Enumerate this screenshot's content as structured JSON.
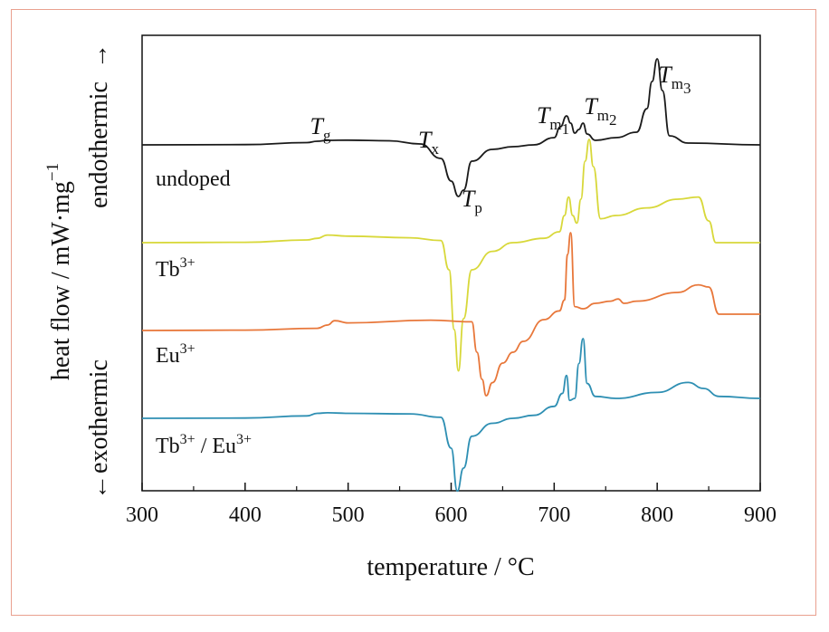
{
  "chart_data": {
    "type": "line",
    "xlabel": "temperature / °C",
    "ylabel": "heat flow / mW·mg",
    "ylabel_exponent": "−1",
    "side_labels": {
      "top": "endothermic",
      "bottom": "exothermic",
      "arrow_up": "→",
      "arrow_down": "←"
    },
    "xlim": [
      300,
      900
    ],
    "xticks": [
      300,
      400,
      500,
      600,
      700,
      800,
      900
    ],
    "colors": {
      "undoped": "#1a1a1a",
      "tb": "#d8d83a",
      "eu": "#e8773a",
      "tbeu": "#2e8fb3"
    },
    "series": [
      {
        "name": "undoped",
        "label_base": "undoped",
        "label_sup": "",
        "color": "#1a1a1a",
        "x": [
          300,
          400,
          460,
          470,
          480,
          500,
          540,
          570,
          590,
          600,
          607,
          612,
          620,
          640,
          660,
          680,
          700,
          706,
          712,
          716,
          720,
          724,
          728,
          732,
          740,
          760,
          780,
          790,
          795,
          800,
          805,
          812,
          830,
          900
        ],
        "y": [
          0,
          0.3,
          2.5,
          4,
          5,
          5.2,
          4.5,
          1,
          -15,
          -40,
          -57,
          -50,
          -18,
          -5,
          -2,
          0,
          8,
          20,
          32,
          24,
          13,
          17,
          24,
          12,
          5,
          8,
          14,
          40,
          70,
          95,
          60,
          10,
          2,
          0
        ]
      },
      {
        "name": "Tb3+",
        "label_base": "Tb",
        "label_sup": "3+",
        "color": "#d8d83a",
        "x": [
          300,
          400,
          460,
          470,
          480,
          500,
          560,
          590,
          598,
          603,
          607,
          612,
          620,
          640,
          660,
          690,
          705,
          710,
          714,
          718,
          722,
          726,
          730,
          734,
          738,
          745,
          760,
          790,
          820,
          840,
          850,
          857,
          870,
          900
        ],
        "y": [
          0,
          0.3,
          2.5,
          4,
          7,
          6,
          4.5,
          2,
          -25,
          -80,
          -118,
          -70,
          -25,
          -8,
          0,
          4,
          10,
          25,
          42,
          25,
          18,
          40,
          75,
          95,
          70,
          22,
          25,
          32,
          40,
          42,
          20,
          0,
          0,
          0
        ]
      },
      {
        "name": "Eu3+",
        "label_base": "Eu",
        "label_sup": "3+",
        "color": "#e8773a",
        "x": [
          300,
          400,
          470,
          480,
          487,
          500,
          580,
          620,
          625,
          630,
          634,
          640,
          650,
          660,
          670,
          690,
          705,
          710,
          713,
          716,
          720,
          728,
          740,
          755,
          762,
          768,
          780,
          820,
          840,
          850,
          860,
          900
        ],
        "y": [
          0,
          0.3,
          2,
          5,
          9,
          7,
          9.5,
          8,
          -20,
          -45,
          -60,
          -48,
          -30,
          -20,
          -10,
          10,
          18,
          28,
          70,
          90,
          22,
          20,
          25,
          27,
          29,
          25,
          27,
          35,
          42,
          40,
          15,
          15
        ]
      },
      {
        "name": "Tb3+ / Eu3+",
        "label_base": "Tb",
        "label_sup": "3+",
        "label_mid": " / Eu",
        "label_sup2": "3+",
        "color": "#2e8fb3",
        "x": [
          300,
          400,
          460,
          470,
          480,
          500,
          560,
          590,
          600,
          606,
          612,
          620,
          640,
          660,
          680,
          700,
          708,
          712,
          715,
          720,
          724,
          728,
          732,
          740,
          760,
          800,
          830,
          845,
          860,
          900
        ],
        "y": [
          0,
          0.3,
          2.5,
          5,
          5.5,
          5,
          4.5,
          1,
          -30,
          -73,
          -50,
          -18,
          -5,
          0,
          3,
          12,
          25,
          43,
          18,
          20,
          55,
          80,
          35,
          22,
          20,
          26,
          36,
          30,
          22,
          20
        ]
      }
    ],
    "annotations": [
      {
        "base": "T",
        "sub": "g",
        "sub2": "",
        "x": 470
      },
      {
        "base": "T",
        "sub": "x",
        "sub2": "",
        "x": 575
      },
      {
        "base": "T",
        "sub": "p",
        "sub2": "",
        "x": 617
      },
      {
        "base": "T",
        "sub": "m",
        "sub2": "1",
        "x": 690
      },
      {
        "base": "T",
        "sub": "m",
        "sub2": "2",
        "x": 736
      },
      {
        "base": "T",
        "sub": "m",
        "sub2": "3",
        "x": 808
      }
    ]
  }
}
